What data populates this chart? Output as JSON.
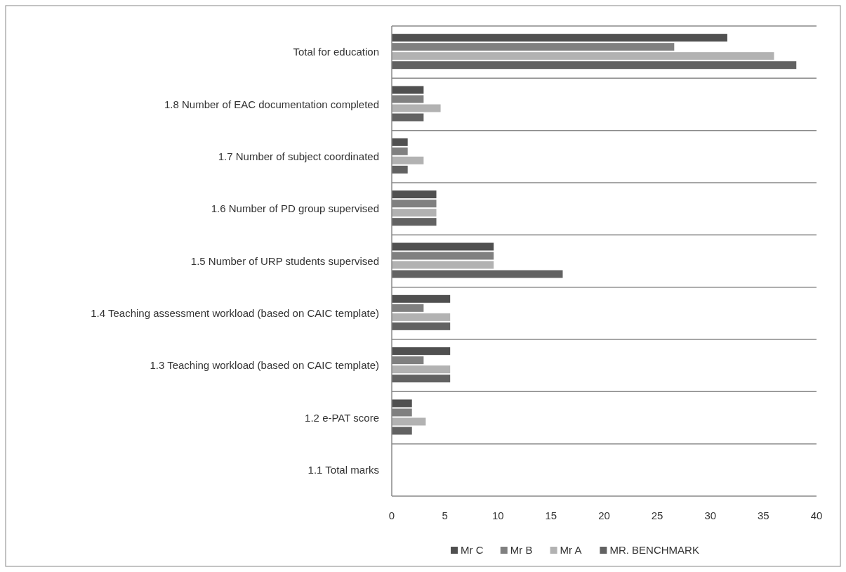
{
  "chart_data": {
    "type": "bar",
    "orientation": "horizontal",
    "categories": [
      "Total for education",
      "1.8 Number of EAC documentation completed",
      "1.7 Number of subject coordinated",
      "1.6 Number of PD group supervised",
      "1.5 Number of URP students supervised",
      "1.4 Teaching assessment workload (based on CAIC template)",
      "1.3 Teaching workload (based on CAIC template)",
      "1.2 e-PAT score",
      "1.1 Total marks"
    ],
    "series": [
      {
        "name": "Mr C",
        "color": "#505050",
        "values": [
          31.6,
          3.0,
          1.5,
          4.2,
          9.6,
          5.5,
          5.5,
          1.9,
          0
        ]
      },
      {
        "name": "Mr B",
        "color": "#808080",
        "values": [
          26.6,
          3.0,
          1.5,
          4.2,
          9.6,
          3.0,
          3.0,
          1.9,
          0
        ]
      },
      {
        "name": "Mr A",
        "color": "#b2b2b2",
        "values": [
          36.0,
          4.6,
          3.0,
          4.2,
          9.6,
          5.5,
          5.5,
          3.2,
          0
        ]
      },
      {
        "name": "MR. BENCHMARK",
        "color": "#626262",
        "values": [
          38.1,
          3.0,
          1.5,
          4.2,
          16.1,
          5.5,
          5.5,
          1.9,
          0
        ]
      }
    ],
    "xlim": [
      0,
      40
    ],
    "xticks": [
      0,
      5,
      10,
      15,
      20,
      25,
      30,
      35,
      40
    ],
    "grid": "y",
    "legend": "bottom"
  }
}
